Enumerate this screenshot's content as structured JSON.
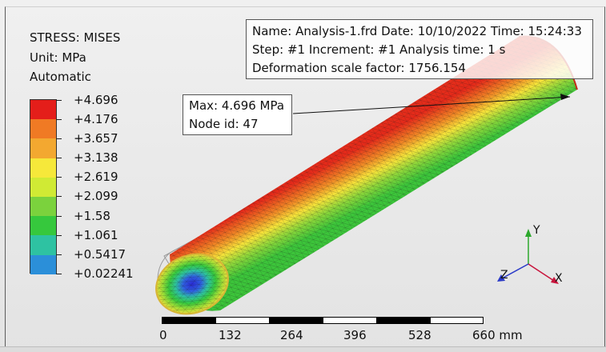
{
  "legend": {
    "title": "STRESS: MISES",
    "unit": "Unit: MPa",
    "mode": "Automatic",
    "colors": [
      "#e41e1a",
      "#f07a24",
      "#f3a830",
      "#f6e83a",
      "#d0ea34",
      "#7bd23d",
      "#36c83d",
      "#2ec2a2",
      "#2b8fd9",
      "#2f5fe0",
      "#2a2ad2"
    ],
    "ticks": [
      "+4.696",
      "+4.176",
      "+3.657",
      "+3.138",
      "+2.619",
      "+2.099",
      "+1.58",
      "+1.061",
      "+0.5417",
      "+0.02241"
    ]
  },
  "info": {
    "line1": "Name: Analysis-1.frd   Date: 10/10/2022   Time: 15:24:33",
    "line2": "Step: #1   Increment: #1   Analysis time: 1 s",
    "line3": "Deformation scale factor: 1756.154"
  },
  "max_info": {
    "max_value": "Max: 4.696 MPa",
    "node_id": "Node id: 47"
  },
  "scale": {
    "labels": [
      "0",
      "132",
      "264",
      "396",
      "528",
      "660 mm"
    ]
  },
  "axes": {
    "x": "X",
    "y": "Y",
    "z": "Z",
    "colors": {
      "x": "#c8143c",
      "y": "#2ca82c",
      "z": "#2a3ac8"
    }
  }
}
